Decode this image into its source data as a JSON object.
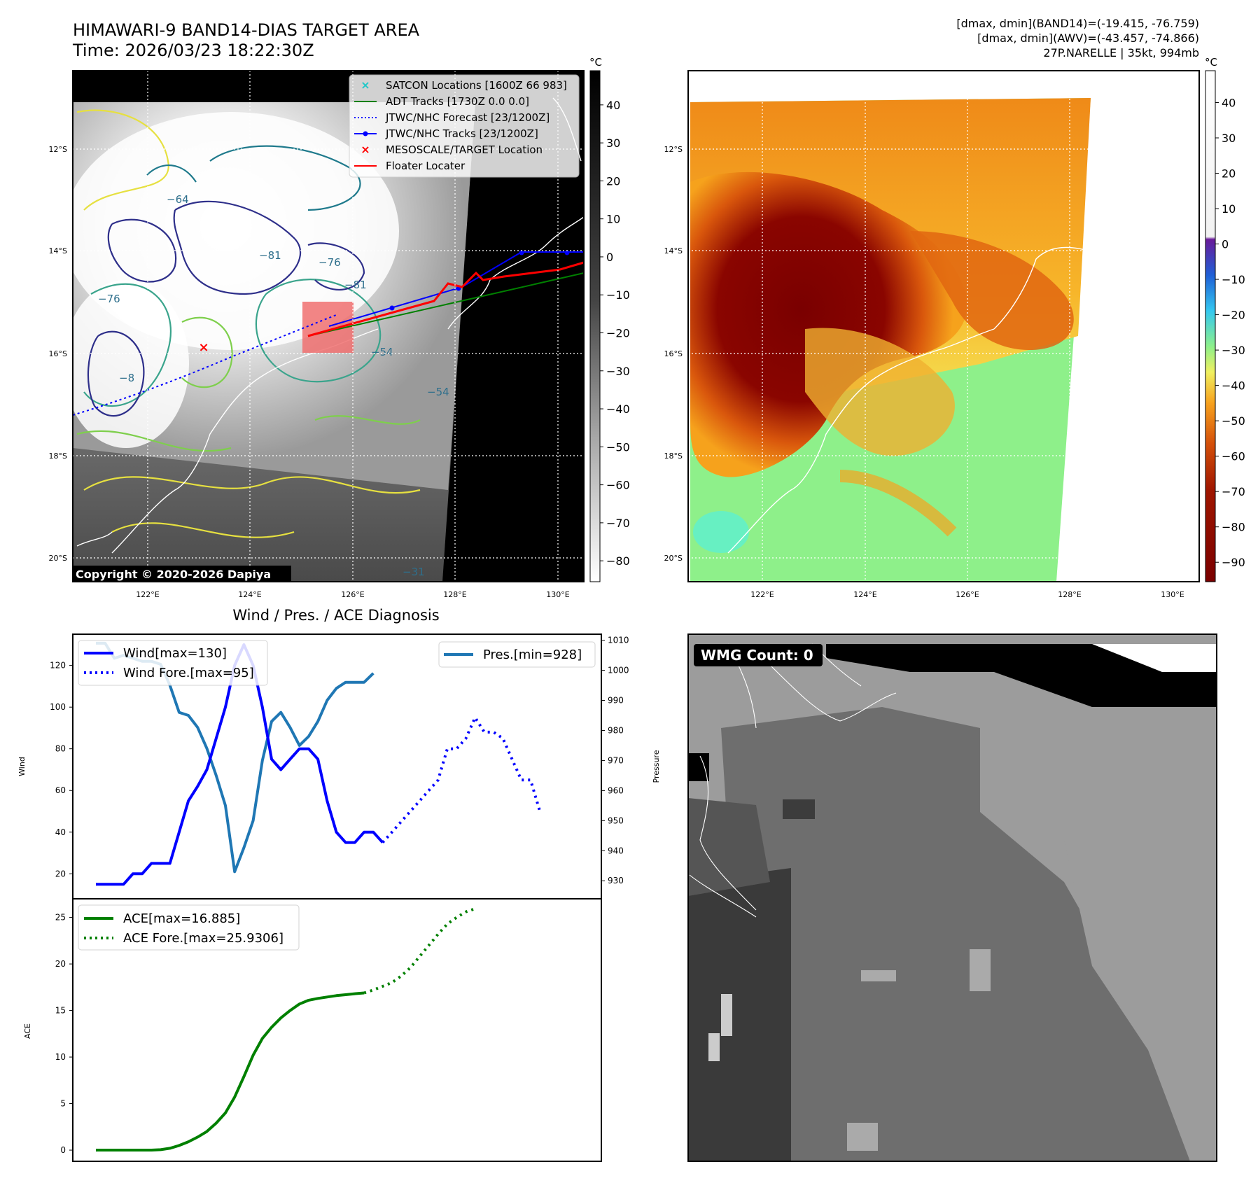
{
  "header": {
    "title": "HIMAWARI-9 BAND14-DIAS TARGET AREA",
    "time": "Time: 2026/03/23 18:22:30Z",
    "stats_band14": "[dmax, dmin](BAND14)=(-19.415, -76.759)",
    "stats_awv": "[dmax, dmin](AWV)=(-43.457, -74.866)",
    "storm_info": "27P.NARELLE | 35kt, 994mb"
  },
  "map_common": {
    "lat_labels": [
      "12°S",
      "14°S",
      "16°S",
      "18°S",
      "20°S"
    ],
    "lon_labels": [
      "122°E",
      "124°E",
      "126°E",
      "128°E",
      "130°E"
    ],
    "colorbar_unit": "°C"
  },
  "map_left": {
    "colorbar_ticks": [
      "40",
      "30",
      "20",
      "10",
      "0",
      "−10",
      "−20",
      "−30",
      "−40",
      "−50",
      "−60",
      "−70",
      "−80"
    ],
    "copyright": "Copyright © 2020-2026 Dapiya",
    "contour_labels": [
      "−64",
      "−76",
      "−81",
      "−76",
      "−81",
      "−54",
      "−54",
      "−31",
      "−8"
    ],
    "legend": [
      {
        "label": "SATCON Locations [1600Z 66 983]",
        "color": "#1fc8c8",
        "marker": "x"
      },
      {
        "label": "ADT Tracks [1730Z 0.0 0.0]",
        "color": "#008000",
        "marker": "line"
      },
      {
        "label": "JTWC/NHC Forecast [23/1200Z]",
        "color": "#0000ff",
        "marker": "dotted"
      },
      {
        "label": "JTWC/NHC Tracks [23/1200Z]",
        "color": "#0000ff",
        "marker": "line-dot"
      },
      {
        "label": "MESOSCALE/TARGET Location",
        "color": "#ff0000",
        "marker": "x"
      },
      {
        "label": "Floater Locater",
        "color": "#ff0000",
        "marker": "line"
      }
    ]
  },
  "map_right": {
    "colorbar_ticks": [
      "40",
      "30",
      "20",
      "10",
      "0",
      "−10",
      "−20",
      "−30",
      "−40",
      "−50",
      "−60",
      "−70",
      "−80",
      "−90"
    ]
  },
  "wmg_panel": {
    "label": "WMG Count: 0"
  },
  "chart_data": [
    {
      "type": "line",
      "title": "Wind / Pres. / ACE Diagnosis",
      "ylabel": "Wind",
      "ylabel_right": "Pressure",
      "ylim": [
        8,
        135
      ],
      "ylim_right": [
        924,
        1012
      ],
      "x_index": [
        0,
        1,
        2,
        3,
        4,
        5,
        6,
        7,
        8,
        9,
        10,
        11,
        12,
        13,
        14,
        15,
        16,
        17,
        18,
        19,
        20,
        21,
        22,
        23,
        24,
        25,
        26,
        27,
        28,
        29,
        30,
        31,
        32,
        33,
        34,
        35,
        36,
        37,
        38,
        39,
        40,
        41,
        42,
        43,
        44,
        45,
        46,
        47,
        48,
        49,
        50,
        51,
        52
      ],
      "y_ticks_left": [
        20,
        40,
        60,
        80,
        100,
        120
      ],
      "y_ticks_right": [
        930,
        940,
        950,
        960,
        970,
        980,
        990,
        1000,
        1010
      ],
      "series": [
        {
          "name": "Wind[max=130]",
          "color": "#0000ff",
          "style": "solid",
          "x_start": 0,
          "values": [
            15,
            15,
            15,
            15,
            20,
            20,
            25,
            25,
            25,
            40,
            55,
            62,
            70,
            85,
            100,
            120,
            130,
            120,
            100,
            75,
            70,
            75,
            80,
            80,
            75,
            55,
            40,
            35,
            35,
            40,
            40,
            35
          ]
        },
        {
          "name": "Wind Fore.[max=95]",
          "color": "#0000ff",
          "style": "dotted",
          "x_start": 31,
          "values": [
            35,
            40,
            45,
            50,
            55,
            60,
            65,
            80,
            80,
            85,
            95,
            88,
            88,
            85,
            75,
            65,
            65,
            50
          ]
        },
        {
          "name": "Pres.[min=928]",
          "color": "#1f77b4",
          "style": "solid",
          "axis": "right",
          "x_start": 0,
          "values": [
            1009,
            1009,
            1004,
            1005,
            1004,
            1003,
            1003,
            1002,
            995,
            986,
            985,
            981,
            974,
            965,
            955,
            933,
            941,
            950,
            970,
            983,
            986,
            981,
            975,
            978,
            983,
            990,
            994,
            996,
            996,
            996,
            999
          ]
        }
      ],
      "legend_left_position": "upper left",
      "legend_right_position": "upper right"
    },
    {
      "type": "line",
      "ylabel": "ACE",
      "ylim": [
        -1.2,
        27
      ],
      "y_ticks": [
        0,
        5,
        10,
        15,
        20,
        25
      ],
      "series": [
        {
          "name": "ACE[max=16.885]",
          "color": "#008000",
          "style": "solid",
          "x_start": 0,
          "values": [
            0,
            0,
            0,
            0,
            0,
            0,
            0,
            0.05,
            0.2,
            0.5,
            0.9,
            1.4,
            2.0,
            2.9,
            4.0,
            5.7,
            7.9,
            10.2,
            12.0,
            13.2,
            14.2,
            15.0,
            15.7,
            16.1,
            16.3,
            16.45,
            16.6,
            16.7,
            16.8,
            16.885
          ]
        },
        {
          "name": "ACE Fore.[max=25.9306]",
          "color": "#008000",
          "style": "dotted",
          "x_start": 29,
          "values": [
            16.885,
            17.2,
            17.6,
            18.0,
            18.7,
            19.6,
            20.8,
            22.0,
            23.2,
            24.3,
            25.0,
            25.6,
            25.9306
          ]
        }
      ],
      "legend_position": "upper left"
    }
  ]
}
